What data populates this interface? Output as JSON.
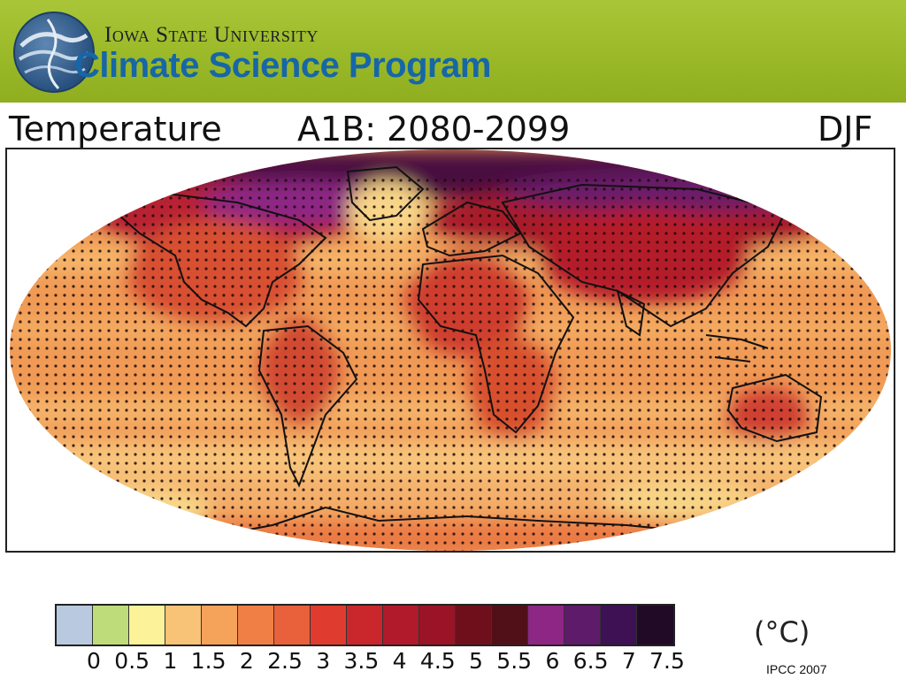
{
  "header": {
    "university": "Iowa State University",
    "program": "Climate Science Program"
  },
  "map": {
    "variable": "Temperature",
    "scenario": "A1B: 2080-2099",
    "season": "DJF",
    "projection": "world map, oval projection",
    "stippling": "black dots over the map"
  },
  "legend": {
    "unit": "(°C)",
    "ticks": [
      "0",
      "0.5",
      "1",
      "1.5",
      "2",
      "2.5",
      "3",
      "3.5",
      "4",
      "4.5",
      "5",
      "5.5",
      "6",
      "6.5",
      "7",
      "7.5"
    ],
    "colors": [
      "#b9c9df",
      "#bedc7a",
      "#fbf29a",
      "#f8c277",
      "#f5a35a",
      "#ef7f45",
      "#e8613b",
      "#df3c2f",
      "#c9272b",
      "#b01a2a",
      "#9b1326",
      "#6f0f1c",
      "#511017",
      "#8d2684",
      "#5e1b6a",
      "#3d1154",
      "#200a26"
    ]
  },
  "credit": "IPCC 2007"
}
